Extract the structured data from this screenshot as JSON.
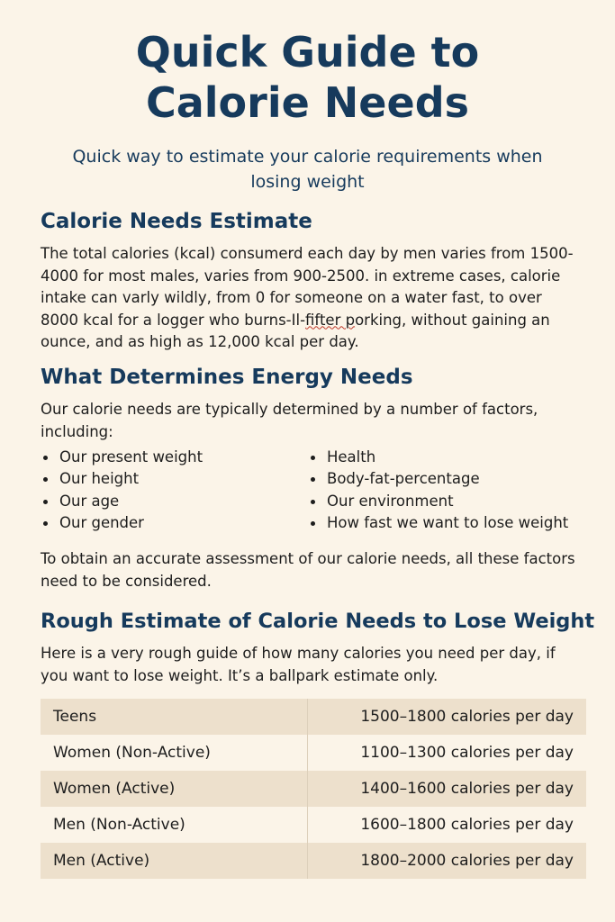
{
  "title_line1": "Quick Guide to",
  "title_line2": "Calorie Needs",
  "subtitle": "Quick way to estimate your calorie requirements when losing weight",
  "section1": {
    "heading": "Calorie Needs Estimate",
    "text_part1": "The total calories (kcal) consumerd each day by men varies from 1500-4000 for most males, varies from 900-2500. in extreme cases, calorie intake can varly wildly, from 0 for someone on a water fast, to over 8000 kcal for a logger who burns-Il-",
    "text_typo": "fifter p",
    "text_part2": "orking, without gaining an ounce, and as high as 12,000 kcal per day."
  },
  "section2": {
    "heading": "What Determines Energy Needs",
    "intro": "Our calorie needs are typically determined by a number of factors, including:",
    "bullets_left": [
      "Our present weight",
      "Our height",
      "Our age",
      "Our gender"
    ],
    "bullets_right": [
      "Health",
      "Body-fat-percentage",
      "Our environment",
      "How fast we want to lose weight"
    ],
    "outro": "To obtain an accurate assessment of our calorie needs, all these factors need to be considered."
  },
  "section3": {
    "heading": "Rough Estimate of Calorie Needs to Lose Weight",
    "intro": "Here is a very rough guide of how many calories you need per day, if you want to lose weight. It’s a ballpark estimate only.",
    "table": [
      {
        "group": "Teens",
        "calories": "1500–1800 calories per day"
      },
      {
        "group": "Women (Non-Active)",
        "calories": "1100–1300 calories per day"
      },
      {
        "group": "Women (Active)",
        "calories": "1400–1600 calories per day"
      },
      {
        "group": "Men (Non-Active)",
        "calories": "1600–1800 calories per day"
      },
      {
        "group": "Men (Active)",
        "calories": "1800–2000 calories per day"
      }
    ]
  }
}
